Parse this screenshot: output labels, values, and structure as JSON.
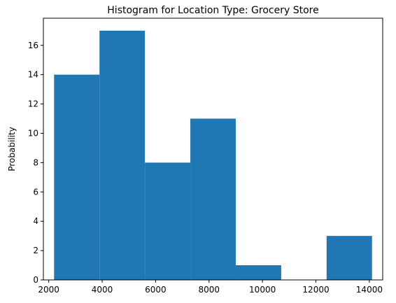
{
  "chart_data": {
    "type": "bar",
    "title": "Histogram for Location Type: Grocery Store",
    "xlabel": "",
    "ylabel": "Probability",
    "bin_edges": [
      2200,
      3900,
      5600,
      7300,
      9000,
      10700,
      12400,
      14100
    ],
    "counts": [
      14,
      17,
      8,
      11,
      1,
      0,
      3
    ],
    "xlim": [
      1800,
      14500
    ],
    "ylim": [
      0,
      17.85
    ],
    "xticks": [
      2000,
      4000,
      6000,
      8000,
      10000,
      12000,
      14000
    ],
    "yticks": [
      0,
      2,
      4,
      6,
      8,
      10,
      12,
      14,
      16
    ],
    "bar_color": "#1f77b4",
    "grid": false
  }
}
